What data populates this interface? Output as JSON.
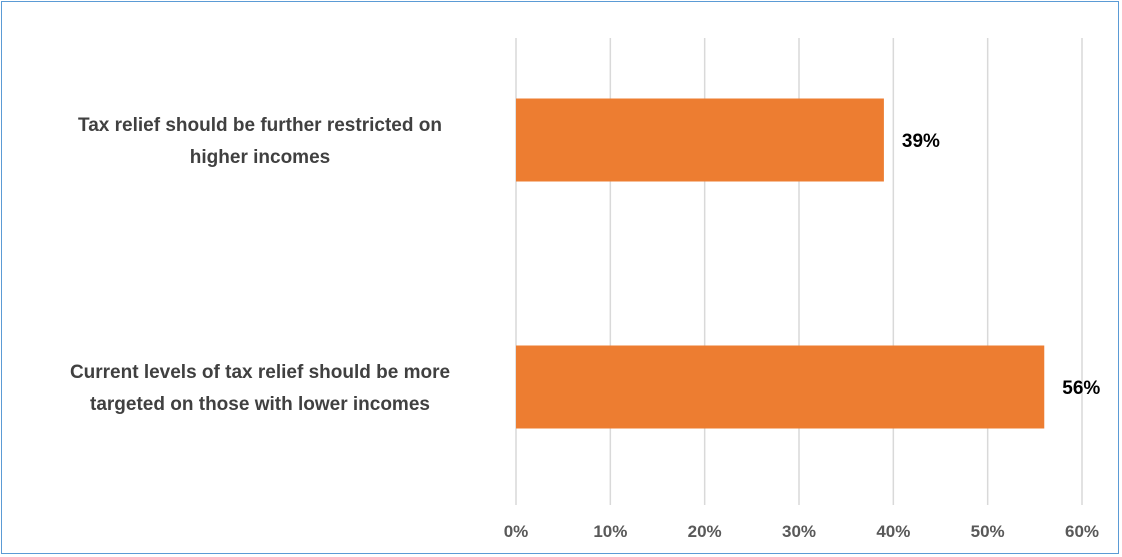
{
  "chart_data": {
    "type": "bar",
    "orientation": "horizontal",
    "categories": [
      [
        "Tax relief should be further restricted on",
        "higher incomes"
      ],
      [
        "Current levels of tax relief should be more",
        "targeted on those with lower incomes"
      ]
    ],
    "values": [
      39,
      56
    ],
    "data_labels": [
      "39%",
      "56%"
    ],
    "xlim": [
      0,
      60
    ],
    "x_ticks": [
      0,
      10,
      20,
      30,
      40,
      50,
      60
    ],
    "x_tick_labels": [
      "0%",
      "10%",
      "20%",
      "30%",
      "40%",
      "50%",
      "60%"
    ],
    "grid": true,
    "legend": "none",
    "bar_color": "#ed7d31",
    "grid_color": "#d9d9d9",
    "border_color": "#5b9bd5"
  }
}
